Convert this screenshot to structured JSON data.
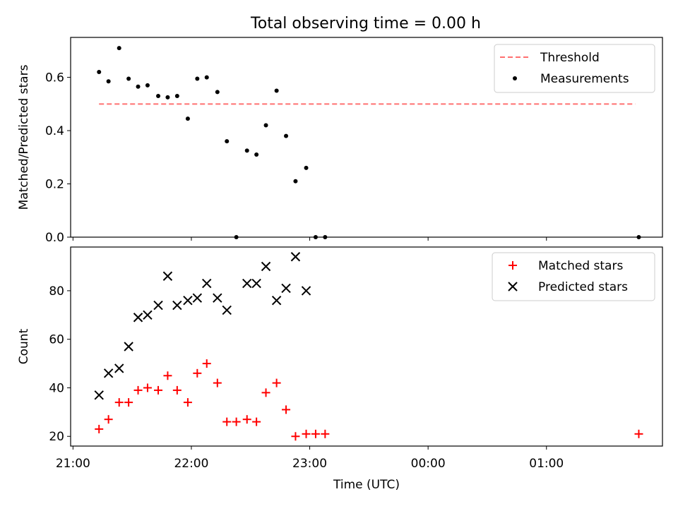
{
  "title": "Total observing time = 0.00 h",
  "colors": {
    "threshold": "#ff7070",
    "measurement": "#000000",
    "matched": "#ff0000",
    "predicted": "#000000",
    "axis": "#000000"
  },
  "chart_data": [
    {
      "type": "scatter",
      "title": "Total observing time = 0.00 h",
      "xlabel": "",
      "ylabel": "Matched/Predicted stars",
      "xlim": [
        20.98,
        25.98
      ],
      "ylim": [
        0,
        0.75
      ],
      "xticks": [
        21,
        22,
        23,
        24,
        25
      ],
      "xticklabels": [
        "",
        "",
        "",
        "",
        ""
      ],
      "yticks": [
        0,
        0.2,
        0.4,
        0.6
      ],
      "yticklabels": [
        "0.0",
        "0.2",
        "0.4",
        "0.6"
      ],
      "legend_position": "upper right",
      "threshold": {
        "name": "Threshold",
        "value": 0.5,
        "x_range": [
          21.22,
          25.75
        ],
        "style": "dashed"
      },
      "series": [
        {
          "name": "Measurements",
          "marker": "dot",
          "x": [
            21.22,
            21.3,
            21.39,
            21.47,
            21.55,
            21.63,
            21.72,
            21.8,
            21.88,
            21.97,
            22.05,
            22.13,
            22.22,
            22.3,
            22.38,
            22.47,
            22.55,
            22.63,
            22.72,
            22.8,
            22.88,
            22.97,
            23.05,
            23.13,
            25.78
          ],
          "y": [
            0.62,
            0.585,
            0.71,
            0.595,
            0.565,
            0.57,
            0.53,
            0.525,
            0.53,
            0.445,
            0.595,
            0.6,
            0.545,
            0.36,
            0.0,
            0.325,
            0.31,
            0.42,
            0.55,
            0.38,
            0.21,
            0.26,
            0.0,
            0.0,
            0.0
          ]
        }
      ]
    },
    {
      "type": "scatter",
      "title": "",
      "xlabel": "Time (UTC)",
      "ylabel": "Count",
      "xlim": [
        20.98,
        25.98
      ],
      "ylim": [
        16,
        98
      ],
      "xticks": [
        21,
        22,
        23,
        24,
        25
      ],
      "xticklabels": [
        "21:00",
        "22:00",
        "23:00",
        "00:00",
        "01:00"
      ],
      "yticks": [
        20,
        40,
        60,
        80
      ],
      "yticklabels": [
        "20",
        "40",
        "60",
        "80"
      ],
      "legend_position": "upper right",
      "series": [
        {
          "name": "Matched stars",
          "marker": "plus",
          "x": [
            21.22,
            21.3,
            21.39,
            21.47,
            21.55,
            21.63,
            21.72,
            21.8,
            21.88,
            21.97,
            22.05,
            22.13,
            22.22,
            22.3,
            22.38,
            22.47,
            22.55,
            22.63,
            22.72,
            22.8,
            22.88,
            22.97,
            23.05,
            23.13,
            25.78
          ],
          "y": [
            23,
            27,
            34,
            34,
            39,
            40,
            39,
            45,
            39,
            34,
            46,
            50,
            42,
            26,
            26,
            27,
            26,
            38,
            42,
            31,
            20,
            21,
            21,
            21,
            21
          ]
        },
        {
          "name": "Predicted stars",
          "marker": "x",
          "x": [
            21.22,
            21.3,
            21.39,
            21.47,
            21.55,
            21.63,
            21.72,
            21.8,
            21.88,
            21.97,
            22.05,
            22.13,
            22.22,
            22.3,
            22.47,
            22.55,
            22.63,
            22.72,
            22.8,
            22.88,
            22.97
          ],
          "y": [
            37,
            46,
            48,
            57,
            69,
            70,
            74,
            86,
            74,
            76,
            77,
            83,
            77,
            72,
            83,
            83,
            90,
            76,
            81,
            94,
            80
          ]
        }
      ]
    }
  ]
}
